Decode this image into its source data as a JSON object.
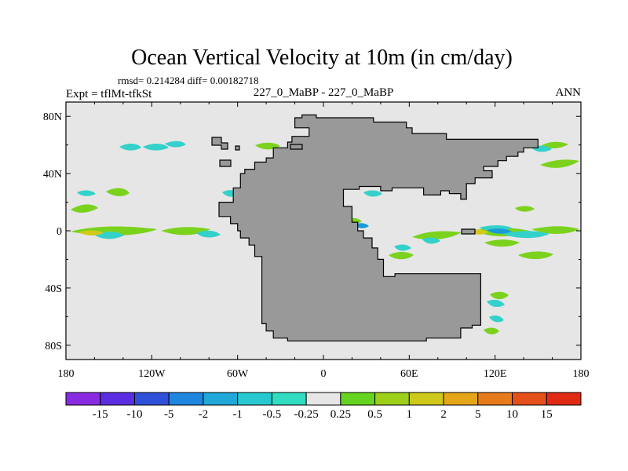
{
  "chart_data": {
    "type": "filled-contour-map",
    "title": "Ocean Vertical Velocity at 10m (in cm/day)",
    "stats": "rmsd= 0.214284 diff= 0.00182718",
    "left_label": "Expt = tflMt-tfkSt",
    "center_label": "227_0_MaBP - 227_0_MaBP",
    "right_label": "ANN",
    "x_ticks": [
      {
        "value": -180,
        "label": "180"
      },
      {
        "value": -120,
        "label": "120W"
      },
      {
        "value": -60,
        "label": "60W"
      },
      {
        "value": 0,
        "label": "0"
      },
      {
        "value": 60,
        "label": "60E"
      },
      {
        "value": 120,
        "label": "120E"
      },
      {
        "value": 180,
        "label": "180"
      }
    ],
    "y_ticks": [
      {
        "value": 80,
        "label": "80N"
      },
      {
        "value": 40,
        "label": "40N"
      },
      {
        "value": 0,
        "label": "0"
      },
      {
        "value": -40,
        "label": "40S"
      },
      {
        "value": -80,
        "label": "80S"
      }
    ],
    "xlim": [
      -180,
      180
    ],
    "ylim": [
      -90,
      90
    ],
    "colorbar": {
      "labels": [
        "-15",
        "-10",
        "-5",
        "-2",
        "-1",
        "-0.5",
        "-0.25",
        "0.25",
        "0.5",
        "1",
        "2",
        "5",
        "10",
        "15"
      ],
      "colors": [
        "#8a2be2",
        "#5a2ee0",
        "#2f50d8",
        "#1f86e0",
        "#1fa8d8",
        "#28c8d0",
        "#31dcc0",
        "#e6e6e6",
        "#66d31e",
        "#9ccf1a",
        "#cdc81a",
        "#e4a519",
        "#e77a1a",
        "#e5501a",
        "#e02a14"
      ]
    },
    "land_polygon": [
      [
        -15,
        79
      ],
      [
        -15,
        81
      ],
      [
        -5,
        81
      ],
      [
        -5,
        79
      ],
      [
        35,
        79
      ],
      [
        35,
        76
      ],
      [
        58,
        76
      ],
      [
        58,
        72
      ],
      [
        62,
        72
      ],
      [
        62,
        68
      ],
      [
        86,
        68
      ],
      [
        86,
        64
      ],
      [
        150,
        64
      ],
      [
        150,
        58
      ],
      [
        140,
        58
      ],
      [
        140,
        55
      ],
      [
        136,
        55
      ],
      [
        136,
        52
      ],
      [
        128,
        52
      ],
      [
        128,
        49
      ],
      [
        122,
        49
      ],
      [
        122,
        45
      ],
      [
        112,
        45
      ],
      [
        112,
        42
      ],
      [
        118,
        42
      ],
      [
        118,
        37
      ],
      [
        106,
        37
      ],
      [
        106,
        33
      ],
      [
        100,
        33
      ],
      [
        100,
        22
      ],
      [
        96,
        22
      ],
      [
        96,
        26
      ],
      [
        88,
        26
      ],
      [
        88,
        28
      ],
      [
        82,
        28
      ],
      [
        82,
        25
      ],
      [
        70,
        25
      ],
      [
        70,
        30
      ],
      [
        48,
        30
      ],
      [
        48,
        28
      ],
      [
        40,
        28
      ],
      [
        40,
        31
      ],
      [
        25,
        31
      ],
      [
        25,
        29
      ],
      [
        14,
        29
      ],
      [
        14,
        17
      ],
      [
        20,
        17
      ],
      [
        20,
        6
      ],
      [
        24,
        6
      ],
      [
        24,
        0
      ],
      [
        28,
        0
      ],
      [
        28,
        -5
      ],
      [
        34,
        -5
      ],
      [
        34,
        -12
      ],
      [
        38,
        -12
      ],
      [
        38,
        -20
      ],
      [
        42,
        -20
      ],
      [
        42,
        -32
      ],
      [
        50,
        -32
      ],
      [
        50,
        -30
      ],
      [
        110,
        -30
      ],
      [
        110,
        -66
      ],
      [
        104,
        -66
      ],
      [
        104,
        -68
      ],
      [
        96,
        -68
      ],
      [
        96,
        -75
      ],
      [
        72,
        -75
      ],
      [
        72,
        -77
      ],
      [
        -25,
        -77
      ],
      [
        -25,
        -75
      ],
      [
        -35,
        -75
      ],
      [
        -35,
        -70
      ],
      [
        -40,
        -70
      ],
      [
        -40,
        -65
      ],
      [
        -43,
        -65
      ],
      [
        -43,
        -18
      ],
      [
        -48,
        -18
      ],
      [
        -48,
        -10
      ],
      [
        -52,
        -10
      ],
      [
        -52,
        -5
      ],
      [
        -58,
        -5
      ],
      [
        -58,
        0
      ],
      [
        -60,
        0
      ],
      [
        -60,
        5
      ],
      [
        -65,
        5
      ],
      [
        -65,
        10
      ],
      [
        -70,
        10
      ],
      [
        -70,
        10
      ],
      [
        -73,
        10
      ],
      [
        -73,
        20
      ],
      [
        -63,
        20
      ],
      [
        -63,
        30
      ],
      [
        -58,
        30
      ],
      [
        -58,
        40
      ],
      [
        -55,
        40
      ],
      [
        -55,
        43
      ],
      [
        -48,
        43
      ],
      [
        -48,
        48
      ],
      [
        -40,
        48
      ],
      [
        -40,
        51
      ],
      [
        -35,
        51
      ],
      [
        -35,
        58
      ],
      [
        -25,
        58
      ],
      [
        -25,
        62
      ],
      [
        -22,
        62
      ],
      [
        -22,
        66
      ],
      [
        -10,
        66
      ],
      [
        -10,
        72
      ],
      [
        -20,
        72
      ],
      [
        -20,
        79
      ]
    ]
  }
}
